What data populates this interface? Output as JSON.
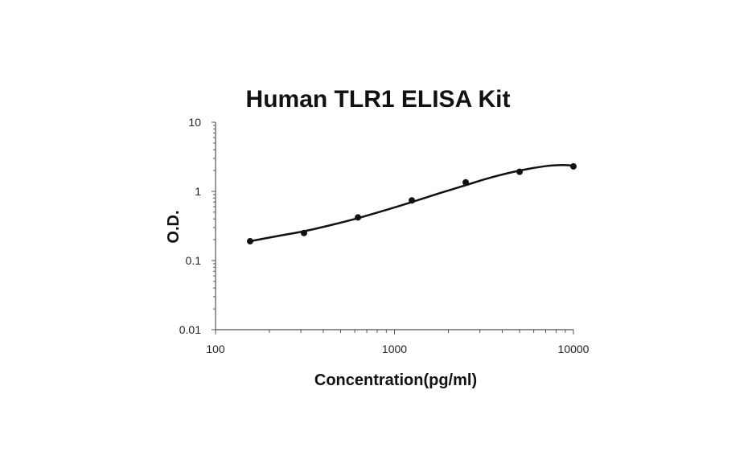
{
  "chart_data": {
    "type": "scatter",
    "title": "Human TLR1 ELISA Kit",
    "xlabel": "Concentration(pg/ml)",
    "ylabel": "O.D.",
    "xscale": "log",
    "yscale": "log",
    "xlim": [
      100,
      10000
    ],
    "ylim": [
      0.01,
      10
    ],
    "grid": false,
    "legend": "none",
    "x_ticks": [
      100,
      1000,
      10000
    ],
    "x_tick_labels": [
      "100",
      "1000",
      "10000"
    ],
    "y_ticks": [
      0.01,
      0.1,
      1,
      10
    ],
    "y_tick_labels": [
      "0.01",
      "0.1",
      "1",
      "10"
    ],
    "series": [
      {
        "x": [
          156,
          312,
          625,
          1250,
          2500,
          5000,
          10000
        ],
        "y": [
          0.19,
          0.25,
          0.42,
          0.74,
          1.35,
          1.92,
          2.3
        ]
      }
    ],
    "fit_curve": {
      "x": [
        156,
        220,
        312,
        440,
        625,
        880,
        1250,
        1760,
        2500,
        3500,
        5000,
        7000,
        8500,
        10000
      ],
      "y": [
        0.19,
        0.225,
        0.265,
        0.325,
        0.41,
        0.53,
        0.7,
        0.93,
        1.23,
        1.6,
        2.0,
        2.32,
        2.4,
        2.36
      ]
    },
    "colors": {
      "points": "#111111",
      "curve": "#111111",
      "axis": "#555555"
    }
  }
}
